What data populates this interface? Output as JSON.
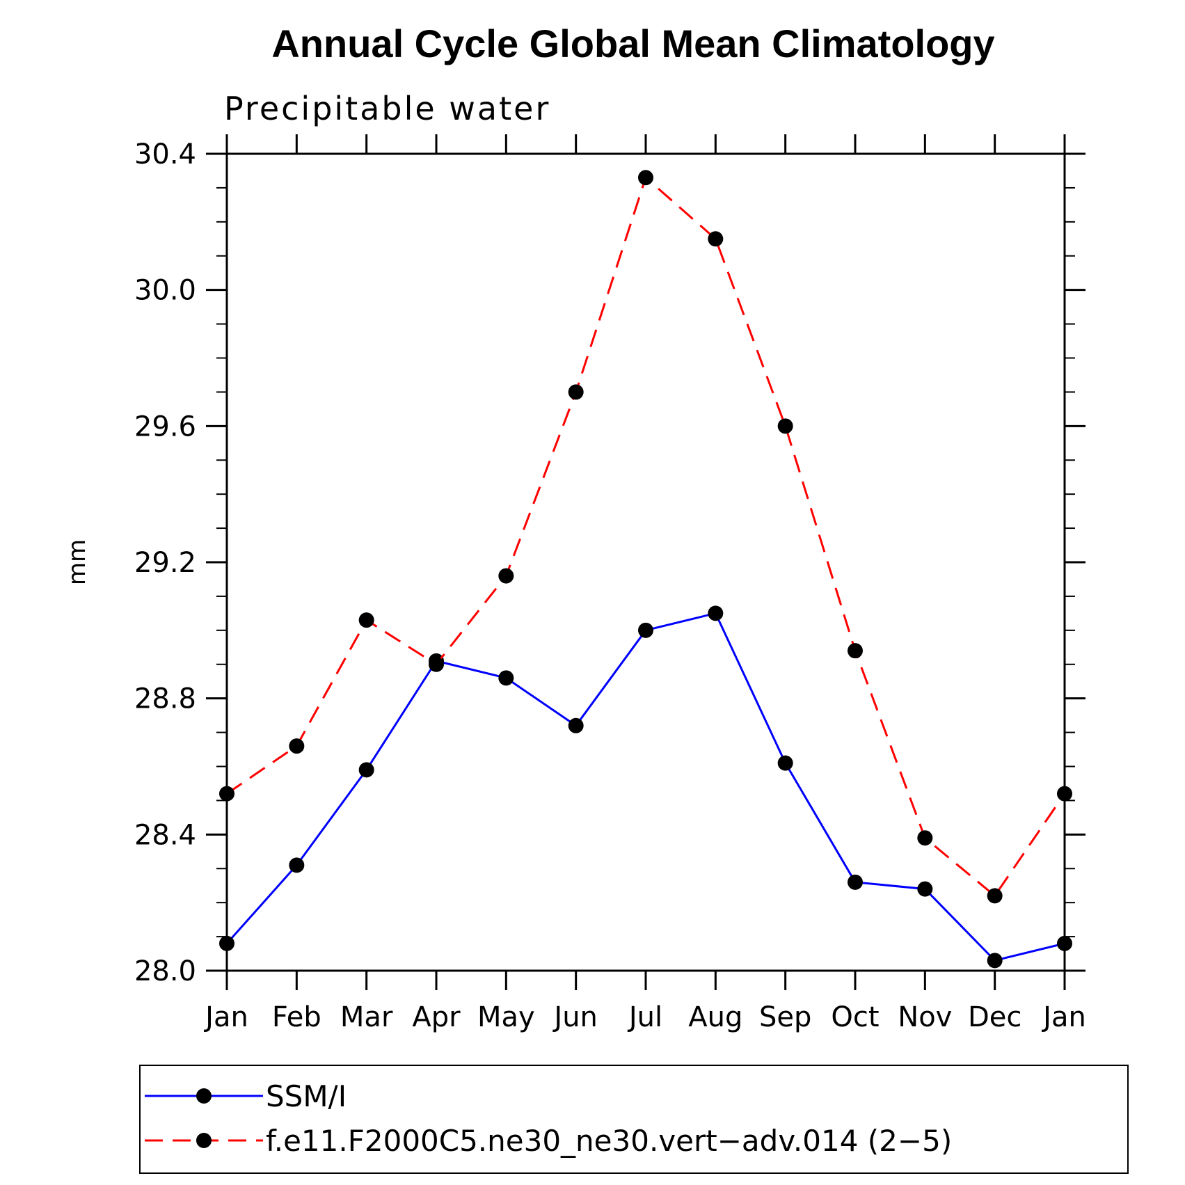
{
  "chart_data": {
    "type": "line",
    "title": "Annual Cycle Global Mean Climatology",
    "subtitle": "Precipitable water",
    "xlabel": "",
    "ylabel": "mm",
    "categories": [
      "Jan",
      "Feb",
      "Mar",
      "Apr",
      "May",
      "Jun",
      "Jul",
      "Aug",
      "Sep",
      "Oct",
      "Nov",
      "Dec",
      "Jan"
    ],
    "ylim": [
      28.0,
      30.4
    ],
    "yticks": [
      "28.0",
      "28.4",
      "28.8",
      "29.2",
      "29.6",
      "30.0",
      "30.4"
    ],
    "grid": false,
    "legend_position": "bottom",
    "series": [
      {
        "name": "SSM/I",
        "color": "#0000ff",
        "line_style": "solid",
        "marker": "filled-circle",
        "values": [
          28.08,
          28.31,
          28.59,
          28.91,
          28.86,
          28.72,
          29.0,
          29.05,
          28.61,
          28.26,
          28.24,
          28.03,
          28.08
        ]
      },
      {
        "name": "f.e11.F2000C5.ne30_ne30.vert−adv.014 (2−5)",
        "color": "#ff0000",
        "line_style": "dashed",
        "marker": "filled-circle",
        "values": [
          28.52,
          28.66,
          29.03,
          28.9,
          29.16,
          29.7,
          30.33,
          30.15,
          29.6,
          28.94,
          28.39,
          28.22,
          28.52
        ]
      }
    ]
  }
}
